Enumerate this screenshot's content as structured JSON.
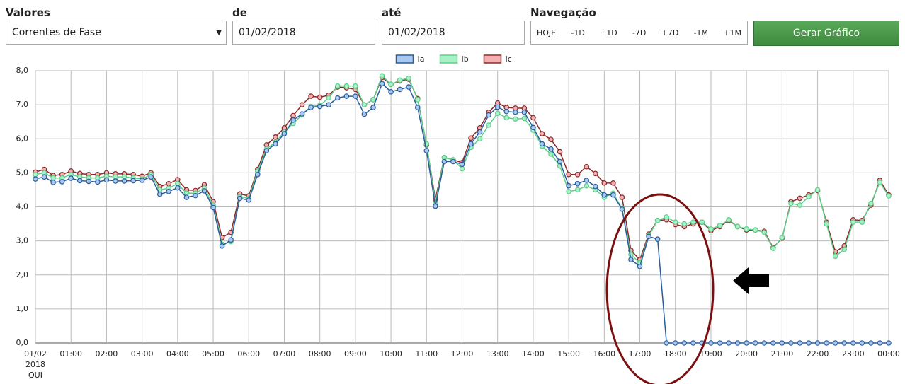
{
  "form": {
    "fields": [
      {
        "label": "Valores",
        "value": "Correntes de Fase"
      },
      {
        "label": "de",
        "value": "01/02/2018"
      },
      {
        "label": "até",
        "value": "01/02/2018"
      }
    ],
    "navigation": {
      "label": "Navegação",
      "buttons": [
        "HOJE",
        "-1D",
        "+1D",
        "-7D",
        "+7D",
        "-1M",
        "+1M"
      ]
    },
    "submit": "Gerar Gráfico"
  },
  "chart_data": {
    "type": "line",
    "legend": "top",
    "grid": true,
    "ylim": [
      0,
      8
    ],
    "yticks": [
      {
        "value": 0,
        "label": "0,0"
      },
      {
        "value": 1,
        "label": "1,0"
      },
      {
        "value": 2,
        "label": "2,0"
      },
      {
        "value": 3,
        "label": "3,0"
      },
      {
        "value": 4,
        "label": "4,0"
      },
      {
        "value": 5,
        "label": "5,0"
      },
      {
        "value": 6,
        "label": "6,0"
      },
      {
        "value": 7,
        "label": "7,0"
      },
      {
        "value": 8,
        "label": "8,0"
      }
    ],
    "categories": [
      "01/02\n2018\nQUI",
      null,
      null,
      null,
      "01:00",
      null,
      null,
      null,
      "02:00",
      null,
      null,
      null,
      "03:00",
      null,
      null,
      null,
      "04:00",
      null,
      null,
      null,
      "05:00",
      null,
      null,
      null,
      "06:00",
      null,
      null,
      null,
      "07:00",
      null,
      null,
      null,
      "08:00",
      null,
      null,
      null,
      "09:00",
      null,
      null,
      null,
      "10:00",
      null,
      null,
      null,
      "11:00",
      null,
      null,
      null,
      "12:00",
      null,
      null,
      null,
      "13:00",
      null,
      null,
      null,
      "14:00",
      null,
      null,
      null,
      "15:00",
      null,
      null,
      null,
      "16:00",
      null,
      null,
      null,
      "17:00",
      null,
      null,
      null,
      "18:00",
      null,
      null,
      null,
      "19:00",
      null,
      null,
      null,
      "20:00",
      null,
      null,
      null,
      "21:00",
      null,
      null,
      null,
      "22:00",
      null,
      null,
      null,
      "23:00",
      null,
      null,
      null,
      "00:00"
    ],
    "series": [
      {
        "name": "Ia",
        "color": "#2a5c9e",
        "marker_fill": "#a8c8ef",
        "values": [
          4.82,
          4.88,
          4.72,
          4.74,
          4.84,
          4.77,
          4.75,
          4.73,
          4.79,
          4.76,
          4.76,
          4.77,
          4.78,
          4.88,
          4.37,
          4.45,
          4.56,
          4.28,
          4.33,
          4.47,
          3.98,
          2.85,
          3.03,
          4.25,
          4.2,
          4.95,
          5.65,
          5.85,
          6.15,
          6.55,
          6.73,
          6.92,
          6.95,
          7.0,
          7.2,
          7.25,
          7.25,
          6.72,
          6.92,
          7.62,
          7.38,
          7.45,
          7.52,
          6.92,
          5.65,
          4.02,
          5.33,
          5.33,
          5.25,
          5.85,
          6.2,
          6.7,
          6.93,
          6.8,
          6.78,
          6.78,
          6.33,
          5.85,
          5.7,
          5.33,
          4.62,
          4.68,
          4.78,
          4.6,
          4.35,
          4.35,
          3.93,
          2.45,
          2.25,
          3.13,
          3.05,
          0,
          0,
          0,
          0,
          0,
          0,
          0,
          0,
          0,
          0,
          0,
          0,
          0,
          0,
          0,
          0,
          0,
          0,
          0,
          0,
          0,
          0,
          0,
          0,
          0,
          0
        ]
      },
      {
        "name": "Ib",
        "color": "#5ccf8a",
        "marker_fill": "#a8f0c8",
        "values": [
          4.95,
          5.0,
          4.85,
          4.85,
          4.95,
          4.88,
          4.85,
          4.85,
          4.9,
          4.88,
          4.88,
          4.85,
          4.82,
          4.95,
          4.5,
          4.55,
          4.68,
          4.4,
          4.4,
          4.55,
          4.05,
          2.9,
          2.98,
          4.3,
          4.25,
          5.05,
          5.7,
          5.9,
          6.2,
          6.45,
          6.7,
          6.95,
          6.98,
          7.2,
          7.55,
          7.55,
          7.55,
          7.0,
          7.15,
          7.85,
          7.6,
          7.72,
          7.78,
          7.15,
          5.85,
          4.1,
          5.45,
          5.38,
          5.12,
          5.75,
          6.0,
          6.4,
          6.75,
          6.62,
          6.58,
          6.6,
          6.25,
          5.78,
          5.55,
          5.2,
          4.45,
          4.5,
          4.62,
          4.5,
          4.28,
          4.4,
          3.95,
          2.6,
          2.35,
          3.15,
          3.6,
          3.7,
          3.55,
          3.5,
          3.55,
          3.55,
          3.35,
          3.45,
          3.62,
          3.42,
          3.35,
          3.32,
          3.25,
          2.78,
          3.1,
          4.1,
          4.05,
          4.3,
          4.5,
          3.5,
          2.55,
          2.75,
          3.55,
          3.55,
          4.1,
          4.72,
          4.32
        ]
      },
      {
        "name": "Ic",
        "color": "#8b2a2a",
        "marker_fill": "#f4b0b0",
        "values": [
          5.02,
          5.1,
          4.92,
          4.95,
          5.05,
          4.98,
          4.95,
          4.95,
          5.0,
          4.97,
          4.97,
          4.95,
          4.9,
          5.0,
          4.6,
          4.68,
          4.8,
          4.5,
          4.48,
          4.65,
          4.15,
          3.1,
          3.25,
          4.38,
          4.32,
          5.1,
          5.82,
          6.05,
          6.32,
          6.68,
          7.0,
          7.25,
          7.22,
          7.28,
          7.52,
          7.5,
          7.45,
          7.0,
          7.15,
          7.8,
          7.6,
          7.7,
          7.75,
          7.18,
          5.82,
          4.22,
          5.45,
          5.38,
          5.3,
          6.02,
          6.32,
          6.78,
          7.05,
          6.92,
          6.9,
          6.9,
          6.62,
          6.15,
          5.98,
          5.62,
          4.95,
          4.95,
          5.18,
          4.98,
          4.7,
          4.7,
          4.28,
          2.72,
          2.45,
          3.2,
          3.6,
          3.62,
          3.48,
          3.42,
          3.5,
          3.55,
          3.3,
          3.42,
          3.6,
          3.42,
          3.32,
          3.32,
          3.28,
          2.8,
          3.08,
          4.15,
          4.25,
          4.35,
          4.48,
          3.55,
          2.68,
          2.85,
          3.62,
          3.6,
          4.05,
          4.78,
          4.35
        ]
      }
    ]
  }
}
